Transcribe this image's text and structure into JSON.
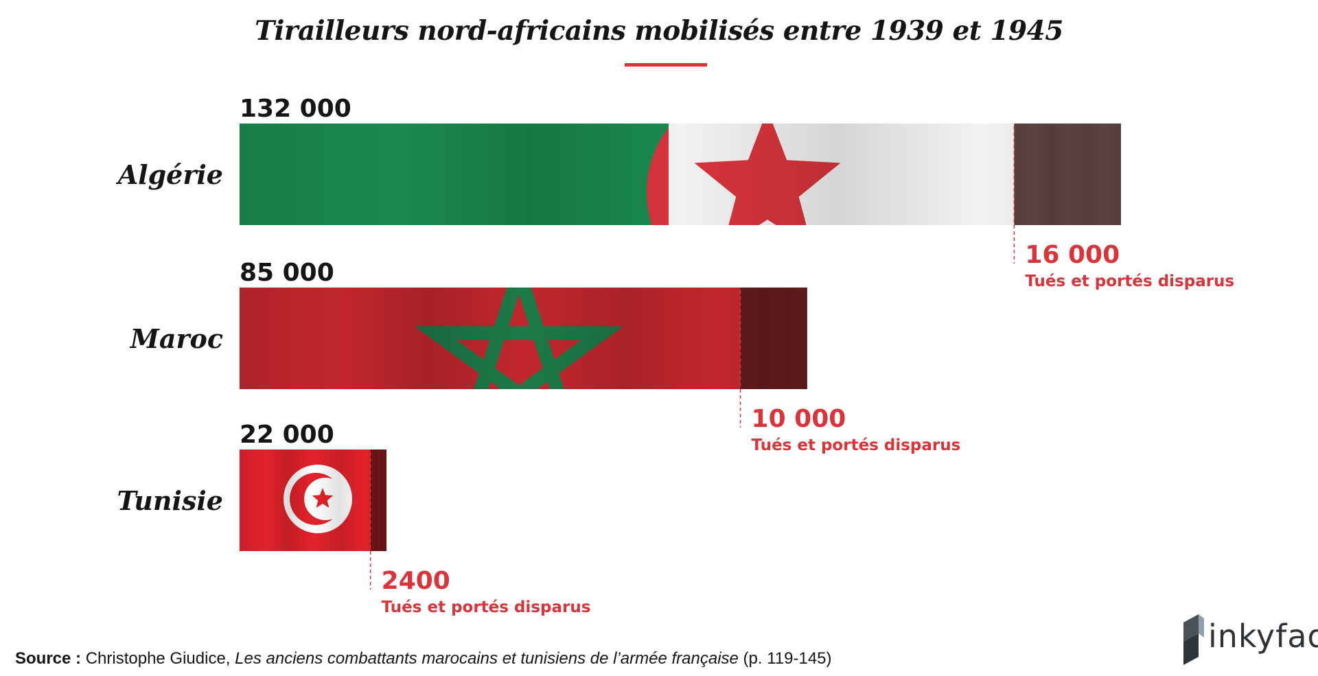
{
  "title": "Tirailleurs nord-africains mobilisés entre 1939 et 1945",
  "colors": {
    "accent": "#d9343a",
    "algeria_green": "#1a8a4f",
    "algeria_red": "#d8343c",
    "algeria_white": "#f2f2f2",
    "algeria_lost": "#5a4240",
    "morocco_red": "#c1272d",
    "morocco_star": "#1d7a48",
    "morocco_lost": "#5e1a1c",
    "tunisia_red": "#e3222b",
    "tunisia_lost": "#6b1417"
  },
  "chart_data": {
    "type": "bar",
    "orientation": "horizontal",
    "title": "Tirailleurs nord-africains mobilisés entre 1939 et 1945",
    "categories": [
      "Algérie",
      "Maroc",
      "Tunisie"
    ],
    "series": [
      {
        "values": [
          132000,
          85000,
          22000
        ]
      },
      {
        "name": "Tués et portés disparus",
        "values": [
          16000,
          10000,
          2400
        ]
      }
    ],
    "value_labels": [
      "132 000",
      "85 000",
      "22 000"
    ],
    "lost_labels": [
      "16 000",
      "10 000",
      "2400"
    ],
    "lost_caption": "Tués et portés disparus"
  },
  "source": {
    "label": "Source :",
    "author": "Christophe Giudice,",
    "title": "Les anciens combattants marocains et tunisiens de l’armée française",
    "pages": "(p. 119-145)"
  },
  "logo": {
    "name": "inkyfada",
    "icon": "inkyfada-cube-icon"
  }
}
